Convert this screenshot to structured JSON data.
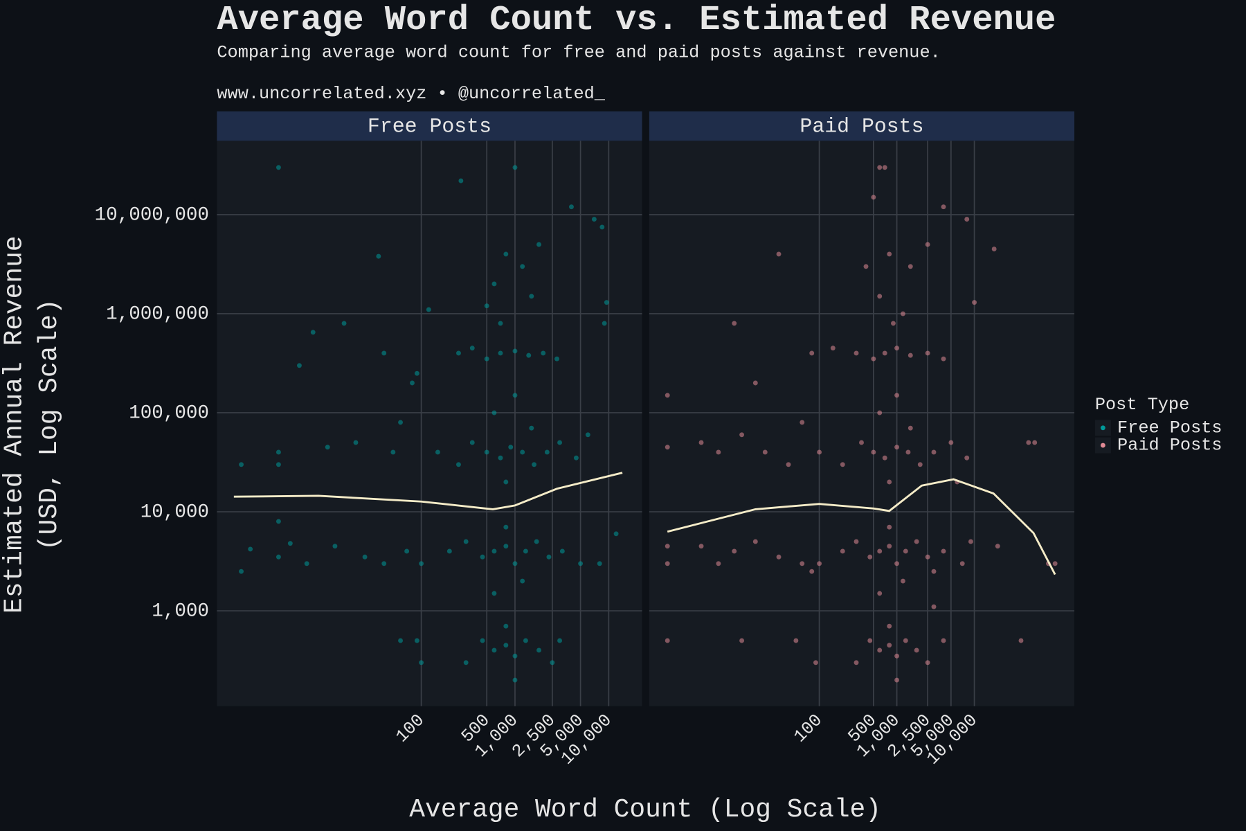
{
  "title": "Average Word Count vs. Estimated Revenue",
  "subtitle": "Comparing average word count for free and paid posts against revenue.",
  "caption": "www.uncorrelated.xyz • @uncorrelated_",
  "x_label": "Average Word Count (Log Scale)",
  "y_label": [
    "Estimated Annual Revenue",
    "(USD, Log Scale)"
  ],
  "legend_title": "Post Type",
  "chart_data": [
    {
      "type": "scatter",
      "title": "Free Posts",
      "xlog": true,
      "ylog": true,
      "grid": true,
      "xlim": [
        0.66,
        22700
      ],
      "ylim": [
        109,
        55800000
      ],
      "xticks": [
        100,
        500,
        {
          "value": 1000,
          "label": "1,000"
        },
        {
          "value": 2500,
          "label": "2,500"
        },
        {
          "value": 5000,
          "label": "5,000"
        },
        {
          "value": 10000,
          "label": "10,000"
        }
      ],
      "yticks": [
        {
          "value": 1000,
          "label": "1,000"
        },
        {
          "value": 10000,
          "label": "10,000"
        },
        {
          "value": 100000,
          "label": "100,000"
        },
        {
          "value": 1000000,
          "label": "1,000,000"
        },
        {
          "value": 10000000,
          "label": "10,000,000"
        }
      ],
      "series": [
        {
          "name": "Free Posts",
          "color": "#009999",
          "x": [
            3,
            1000,
            265,
            4000,
            7000,
            8500,
            35,
            9500,
            120,
            7,
            15,
            9000,
            1.2,
            3,
            3,
            10,
            20,
            50,
            60,
            80,
            5,
            40,
            90,
            1.2,
            1.5,
            3,
            3,
            4,
            6,
            12,
            25,
            40,
            70,
            60,
            90,
            100,
            250,
            350,
            500,
            700,
            1000,
            1400,
            2000,
            2800,
            600,
            800,
            1200,
            1800,
            500,
            1500,
            700,
            150,
            250,
            350,
            500,
            700,
            900,
            1200,
            1600,
            2200,
            3000,
            4500,
            600,
            1000,
            800,
            1500,
            6000,
            100,
            200,
            300,
            450,
            600,
            800,
            1000,
            1300,
            1700,
            2300,
            3200,
            5000,
            800,
            1200,
            600,
            12000,
            8000,
            300,
            450,
            600,
            800,
            1000,
            1300,
            1800,
            2500,
            800,
            1000,
            3000
          ],
          "values": [
            30000000,
            30000000,
            22000000,
            12000000,
            9000000,
            7500000,
            3800000,
            1300000,
            1100000,
            650000,
            800000,
            800000,
            30000,
            40000,
            30000,
            45000,
            50000,
            40000,
            80000,
            200000,
            300000,
            400000,
            250000,
            2500,
            4200,
            8000,
            3500,
            4800,
            3000,
            4500,
            3500,
            3000,
            4000,
            500,
            500,
            300,
            400000,
            450000,
            350000,
            400000,
            420000,
            380000,
            400000,
            350000,
            2000000,
            4000000,
            3000000,
            5000000,
            1200000,
            1500000,
            800000,
            40000,
            30000,
            50000,
            40000,
            35000,
            45000,
            40000,
            30000,
            40000,
            50000,
            35000,
            100000,
            150000,
            20000,
            70000,
            60000,
            3000,
            4000,
            5000,
            3500,
            4000,
            4500,
            3000,
            4000,
            5000,
            3500,
            4000,
            3000,
            7000,
            2000,
            1500,
            6000,
            3000,
            300,
            500,
            400,
            450,
            350,
            500,
            400,
            300,
            700,
            200,
            500
          ]
        },
        {
          "trend": true,
          "color": "#f5ecc8",
          "x": [
            1,
            8,
            100,
            580,
            1000,
            2800,
            14000
          ],
          "values": [
            14200,
            14500,
            12700,
            10600,
            11600,
            17100,
            24800
          ]
        }
      ]
    },
    {
      "type": "scatter",
      "title": "Paid Posts",
      "xlog": true,
      "ylog": true,
      "grid": true,
      "xlim": [
        0.64,
        195000
      ],
      "ylim": [
        109,
        55800000
      ],
      "xticks": [
        100,
        500,
        {
          "value": 1000,
          "label": "1,000"
        },
        {
          "value": 2500,
          "label": "2,500"
        },
        {
          "value": 5000,
          "label": "5,000"
        },
        {
          "value": 10000,
          "label": "10,000"
        }
      ],
      "yticks": [
        {
          "value": 1000,
          "label": "1,000"
        },
        {
          "value": 10000,
          "label": "10,000"
        },
        {
          "value": 100000,
          "label": "100,000"
        },
        {
          "value": 1000000,
          "label": "1,000,000"
        },
        {
          "value": 10000000,
          "label": "10,000,000"
        }
      ],
      "series": [
        {
          "name": "Paid Posts",
          "color": "#e08a95",
          "x": [
            600,
            700,
            500,
            4000,
            8000,
            18000,
            8,
            30,
            1.1,
            1.1,
            1.1,
            1.1,
            1.1,
            10000,
            50000,
            60000,
            90000,
            110000,
            40000,
            20000,
            3000,
            3,
            5,
            10,
            20,
            40,
            60,
            80,
            15,
            3,
            5,
            8,
            15,
            30,
            60,
            80,
            10,
            50,
            90,
            150,
            300,
            500,
            700,
            1000,
            1500,
            2500,
            4000,
            400,
            800,
            1500,
            2500,
            600,
            1200,
            900,
            100,
            200,
            350,
            500,
            700,
            1000,
            1400,
            2000,
            3000,
            5000,
            8000,
            600,
            1000,
            800,
            1500,
            6000,
            100,
            200,
            300,
            450,
            600,
            800,
            1000,
            1300,
            1800,
            2500,
            4000,
            7000,
            800,
            1200,
            600,
            9000,
            3000,
            300,
            450,
            600,
            800,
            1000,
            1300,
            1800,
            2500,
            800,
            1000,
            4000
          ],
          "values": [
            30000000,
            30000000,
            15000000,
            12000000,
            9000000,
            4500000,
            800000,
            4000000,
            150000,
            45000,
            4500,
            3000,
            500,
            1300000,
            50000,
            50000,
            3000,
            3000,
            500,
            4500,
            1100,
            50000,
            40000,
            60000,
            40000,
            30000,
            80000,
            400000,
            200000,
            4500,
            3000,
            4000,
            5000,
            3500,
            3000,
            2500,
            500,
            500,
            300,
            450000,
            400000,
            350000,
            400000,
            450000,
            380000,
            400000,
            350000,
            3000000,
            4000000,
            3000000,
            5000000,
            1500000,
            1000000,
            800000,
            40000,
            30000,
            50000,
            40000,
            35000,
            45000,
            40000,
            30000,
            40000,
            50000,
            35000,
            100000,
            150000,
            20000,
            70000,
            20000,
            3000,
            4000,
            5000,
            3500,
            4000,
            4500,
            3000,
            4000,
            5000,
            3500,
            4000,
            3000,
            7000,
            2000,
            1500,
            5000,
            2500,
            300,
            500,
            400,
            450,
            350,
            500,
            400,
            300,
            700,
            200,
            500
          ]
        },
        {
          "trend": true,
          "color": "#f5ecc8",
          "x": [
            1.1,
            15,
            100,
            500,
            800,
            2100,
            5400,
            17700,
            58000,
            110000
          ],
          "values": [
            6300,
            10600,
            12000,
            10800,
            10200,
            18400,
            21300,
            15300,
            6100,
            2330
          ]
        }
      ]
    }
  ]
}
